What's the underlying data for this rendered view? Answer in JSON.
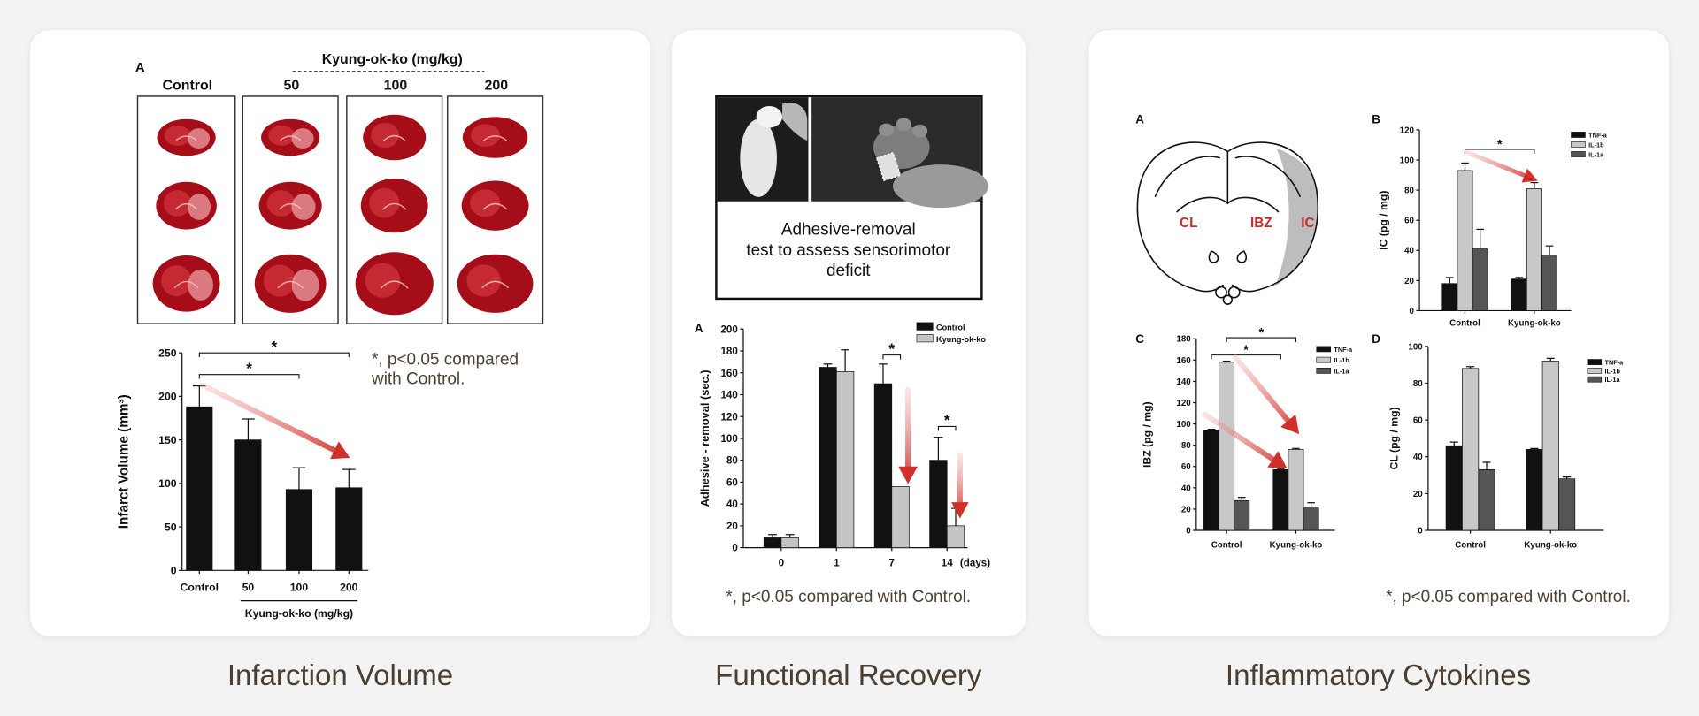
{
  "page": {
    "background": "#f3f3f3",
    "card": "#ffffff",
    "caption_color": "#4a3e32",
    "accent_red": "#d0302a"
  },
  "panels": {
    "infarction": {
      "caption": "Infarction Volume",
      "panel_letter": "A",
      "dose_header": "Kyung-ok-ko (mg/kg)",
      "image_columns": [
        "Control",
        "50",
        "100",
        "200"
      ],
      "note_line1": "*, p<0.05 compared",
      "note_line2": "with Control."
    },
    "functional": {
      "caption": "Functional Recovery",
      "test_line1": "Adhesive-removal",
      "test_line2": "test to assess sensorimotor",
      "test_line3": "deficit",
      "note": "*, p<0.05 compared with Control."
    },
    "cytokines": {
      "caption": "Inflammatory Cytokines",
      "diagram_letter": "A",
      "regions": {
        "cl": "CL",
        "ibz": "IBZ",
        "ic": "IC"
      },
      "note": "*, p<0.05 compared with Control."
    }
  },
  "chart_data": [
    {
      "type": "bar",
      "categories": [
        "Control",
        "50",
        "100",
        "200"
      ],
      "series": [
        {
          "values": [
            188,
            150,
            93,
            95
          ],
          "errors": [
            24,
            24,
            25,
            21
          ],
          "color": "#111111"
        }
      ],
      "xlabel": "Kyung-ok-ko (mg/kg)",
      "ylabel": "Infarct Volume (mm³)",
      "ylim": [
        0,
        250
      ],
      "yticks": [
        0,
        50,
        100,
        150,
        200,
        250
      ],
      "grid": false,
      "significance": [
        {
          "from": "Control",
          "to": "200",
          "label": "*"
        },
        {
          "from": "Control",
          "to": "100",
          "label": "*"
        }
      ]
    },
    {
      "type": "bar",
      "panel": "A",
      "categories": [
        "0",
        "1",
        "7",
        "14"
      ],
      "x_unit": "(days)",
      "series": [
        {
          "name": "Control",
          "values": [
            9,
            165,
            150,
            80
          ],
          "errors": [
            3,
            3,
            18,
            21
          ],
          "color": "#111111"
        },
        {
          "name": "Kyung-ok-ko",
          "values": [
            9,
            161,
            56,
            20
          ],
          "errors": [
            3,
            20,
            0,
            16
          ],
          "color": "#c4c4c4"
        }
      ],
      "ylabel": "Adhesive - removal (sec.)",
      "ylim": [
        0,
        200
      ],
      "yticks": [
        0,
        20,
        40,
        60,
        80,
        100,
        120,
        140,
        160,
        180,
        200
      ],
      "grid": false,
      "legend": "top-right",
      "significance": [
        {
          "category": "7",
          "label": "*"
        },
        {
          "category": "14",
          "label": "*"
        }
      ]
    },
    {
      "type": "bar",
      "panel": "B",
      "categories": [
        "Control",
        "Kyung-ok-ko"
      ],
      "series": [
        {
          "name": "TNF-a",
          "values": [
            18,
            21
          ],
          "errors": [
            4,
            1
          ],
          "color": "#111111"
        },
        {
          "name": "IL-1b",
          "values": [
            93,
            81
          ],
          "errors": [
            5,
            4
          ],
          "color": "#c8c8c8"
        },
        {
          "name": "IL-1a",
          "values": [
            41,
            37
          ],
          "errors": [
            13,
            6
          ],
          "color": "#555555"
        }
      ],
      "ylabel": "IC (pg / mg)",
      "ylim": [
        0,
        120
      ],
      "yticks": [
        0,
        20,
        40,
        60,
        80,
        100,
        120
      ],
      "grid": false,
      "legend": "top-right",
      "significance": [
        {
          "series": "IL-1b",
          "label": "*"
        }
      ]
    },
    {
      "type": "bar",
      "panel": "C",
      "categories": [
        "Control",
        "Kyung-ok-ko"
      ],
      "series": [
        {
          "name": "TNF-a",
          "values": [
            94,
            57
          ],
          "errors": [
            1,
            1
          ],
          "color": "#111111"
        },
        {
          "name": "IL-1b",
          "values": [
            158,
            76
          ],
          "errors": [
            1,
            1
          ],
          "color": "#c8c8c8"
        },
        {
          "name": "IL-1a",
          "values": [
            28,
            22
          ],
          "errors": [
            3,
            4
          ],
          "color": "#555555"
        }
      ],
      "ylabel": "IBZ (pg / mg)",
      "ylim": [
        0,
        180
      ],
      "yticks": [
        0,
        20,
        40,
        60,
        80,
        100,
        120,
        140,
        160,
        180
      ],
      "grid": false,
      "legend": "top-right",
      "significance": [
        {
          "series": "IL-1b",
          "label": "*"
        },
        {
          "series": "TNF-a",
          "label": "*"
        }
      ]
    },
    {
      "type": "bar",
      "panel": "D",
      "categories": [
        "Control",
        "Kyung-ok-ko"
      ],
      "series": [
        {
          "name": "TNF-a",
          "values": [
            46,
            44
          ],
          "errors": [
            2,
            0.5
          ],
          "color": "#111111"
        },
        {
          "name": "IL-1b",
          "values": [
            88,
            92
          ],
          "errors": [
            1,
            1.5
          ],
          "color": "#c8c8c8"
        },
        {
          "name": "IL-1a",
          "values": [
            33,
            28
          ],
          "errors": [
            4,
            1
          ],
          "color": "#555555"
        }
      ],
      "ylabel": "CL (pg / mg)",
      "ylim": [
        0,
        100
      ],
      "yticks": [
        0,
        20,
        40,
        60,
        80,
        100
      ],
      "grid": false,
      "legend": "top-right",
      "significance": []
    }
  ]
}
